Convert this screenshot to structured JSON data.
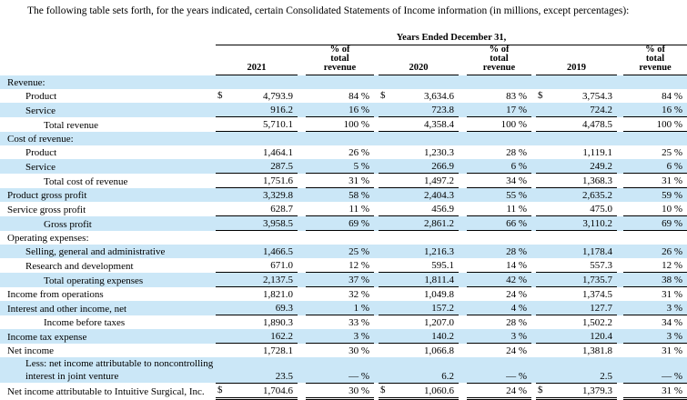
{
  "intro": "The following table sets forth, for the years indicated, certain Consolidated Statements of Income information (in millions, except percentages):",
  "colors": {
    "row_highlight": "#cbe7f7",
    "rule": "#000000",
    "text": "#000000"
  },
  "table": {
    "group_header": "Years Ended December 31,",
    "years": [
      "2021",
      "2020",
      "2019"
    ],
    "pct_header_lines": [
      "% of",
      "total",
      "revenue"
    ],
    "currency_symbol": "$",
    "rows": [
      {
        "label": "Revenue:",
        "indent": 0,
        "shaded": true,
        "section": true
      },
      {
        "label": "Product",
        "indent": 1,
        "shaded": false,
        "dollar": true,
        "values": [
          "4,793.9",
          "84 %",
          "3,634.6",
          "83 %",
          "3,754.3",
          "84 %"
        ]
      },
      {
        "label": "Service",
        "indent": 1,
        "shaded": true,
        "rule": "single",
        "values": [
          "916.2",
          "16 %",
          "723.8",
          "17 %",
          "724.2",
          "16 %"
        ]
      },
      {
        "label": "Total revenue",
        "indent": 2,
        "shaded": false,
        "rule": "single",
        "values": [
          "5,710.1",
          "100 %",
          "4,358.4",
          "100 %",
          "4,478.5",
          "100 %"
        ]
      },
      {
        "label": "Cost of revenue:",
        "indent": 0,
        "shaded": true,
        "section": true
      },
      {
        "label": "Product",
        "indent": 1,
        "shaded": false,
        "values": [
          "1,464.1",
          "26 %",
          "1,230.3",
          "28 %",
          "1,119.1",
          "25 %"
        ]
      },
      {
        "label": "Service",
        "indent": 1,
        "shaded": true,
        "rule": "single",
        "values": [
          "287.5",
          "5 %",
          "266.9",
          "6 %",
          "249.2",
          "6 %"
        ]
      },
      {
        "label": "Total cost of revenue",
        "indent": 2,
        "shaded": false,
        "rule": "single",
        "values": [
          "1,751.6",
          "31 %",
          "1,497.2",
          "34 %",
          "1,368.3",
          "31 %"
        ]
      },
      {
        "label": "Product gross profit",
        "indent": 0,
        "shaded": true,
        "values": [
          "3,329.8",
          "58 %",
          "2,404.3",
          "55 %",
          "2,635.2",
          "59 %"
        ]
      },
      {
        "label": "Service gross profit",
        "indent": 0,
        "shaded": false,
        "rule": "single",
        "values": [
          "628.7",
          "11 %",
          "456.9",
          "11 %",
          "475.0",
          "10 %"
        ]
      },
      {
        "label": "Gross profit",
        "indent": 2,
        "shaded": true,
        "rule": "single",
        "values": [
          "3,958.5",
          "69 %",
          "2,861.2",
          "66 %",
          "3,110.2",
          "69 %"
        ]
      },
      {
        "label": "Operating expenses:",
        "indent": 0,
        "shaded": false,
        "section": true
      },
      {
        "label": "Selling, general and administrative",
        "indent": 1,
        "shaded": true,
        "values": [
          "1,466.5",
          "25 %",
          "1,216.3",
          "28 %",
          "1,178.4",
          "26 %"
        ]
      },
      {
        "label": "Research and development",
        "indent": 1,
        "shaded": false,
        "rule": "single",
        "values": [
          "671.0",
          "12 %",
          "595.1",
          "14 %",
          "557.3",
          "12 %"
        ]
      },
      {
        "label": "Total operating expenses",
        "indent": 2,
        "shaded": true,
        "rule": "single",
        "values": [
          "2,137.5",
          "37 %",
          "1,811.4",
          "42 %",
          "1,735.7",
          "38 %"
        ]
      },
      {
        "label": "Income from operations",
        "indent": 0,
        "shaded": false,
        "values": [
          "1,821.0",
          "32 %",
          "1,049.8",
          "24 %",
          "1,374.5",
          "31 %"
        ]
      },
      {
        "label": "Interest and other income, net",
        "indent": 0,
        "shaded": true,
        "rule": "single",
        "values": [
          "69.3",
          "1 %",
          "157.2",
          "4 %",
          "127.7",
          "3 %"
        ]
      },
      {
        "label": "Income before taxes",
        "indent": 2,
        "shaded": false,
        "values": [
          "1,890.3",
          "33 %",
          "1,207.0",
          "28 %",
          "1,502.2",
          "34 %"
        ]
      },
      {
        "label": "Income tax expense",
        "indent": 0,
        "shaded": true,
        "rule": "single",
        "values": [
          "162.2",
          "3 %",
          "140.2",
          "3 %",
          "120.4",
          "3 %"
        ]
      },
      {
        "label": "Net income",
        "indent": 0,
        "shaded": false,
        "values": [
          "1,728.1",
          "30 %",
          "1,066.8",
          "24 %",
          "1,381.8",
          "31 %"
        ]
      },
      {
        "label": "Less: net income attributable to noncontrolling interest in joint venture",
        "indent": 1,
        "shaded": true,
        "rule": "single",
        "values": [
          "23.5",
          "— %",
          "6.2",
          "— %",
          "2.5",
          "— %"
        ]
      },
      {
        "label": "Net income attributable to Intuitive Surgical, Inc.",
        "indent": 0,
        "shaded": false,
        "dollar": true,
        "rule": "double",
        "values": [
          "1,704.6",
          "30 %",
          "1,060.6",
          "24 %",
          "1,379.3",
          "31 %"
        ]
      }
    ]
  }
}
